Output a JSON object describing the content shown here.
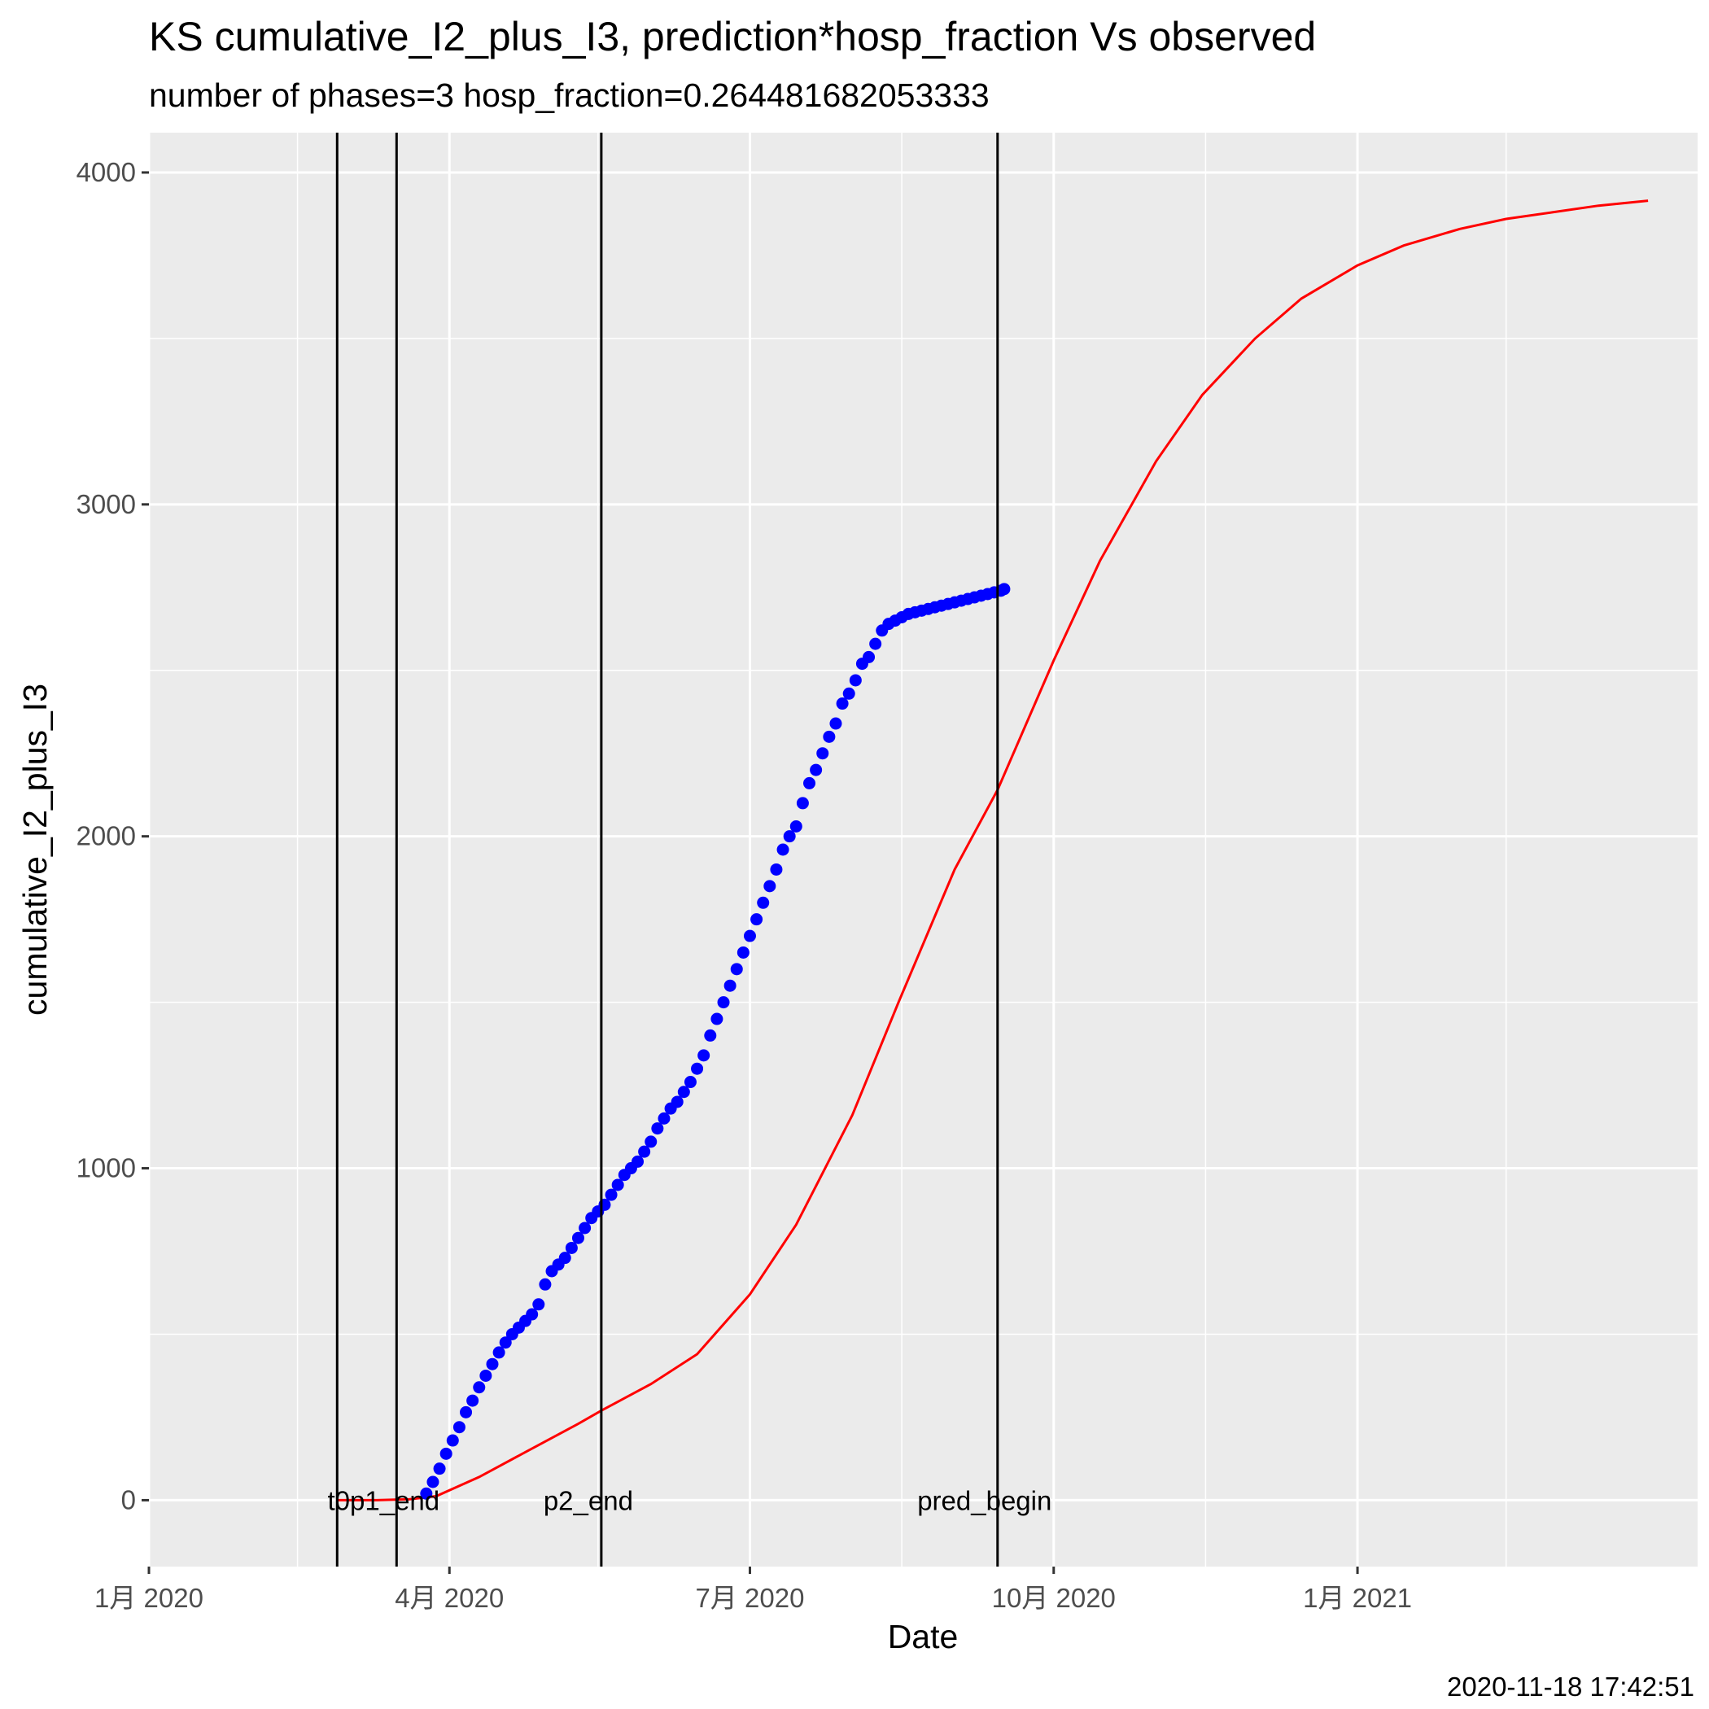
{
  "chart_data": {
    "type": "scatter",
    "title": "KS cumulative_I2_plus_I3,  prediction*hosp_fraction Vs observed",
    "subtitle": "number of phases=3   hosp_fraction=0.264481682053333",
    "xlabel": "Date",
    "ylabel": "cumulative_I2_plus_I3",
    "caption": "2020-11-18 17:42:51",
    "xlim": [
      "2020-01-01",
      "2021-04-14"
    ],
    "ylim": [
      -200,
      4120
    ],
    "x_ticks": [
      {
        "date": "2020-01-01",
        "label": "1月 2020"
      },
      {
        "date": "2020-04-01",
        "label": "4月 2020"
      },
      {
        "date": "2020-07-01",
        "label": "7月 2020"
      },
      {
        "date": "2020-10-01",
        "label": "10月 2020"
      },
      {
        "date": "2021-01-01",
        "label": "1月 2021"
      }
    ],
    "x_minor_ticks": [
      "2020-02-15",
      "2020-05-16",
      "2020-08-16",
      "2020-11-16",
      "2021-02-15"
    ],
    "y_ticks": [
      0,
      1000,
      2000,
      3000,
      4000
    ],
    "y_minor_ticks": [
      500,
      1500,
      2500,
      3500
    ],
    "grid": true,
    "vlines": [
      {
        "date": "2020-02-27",
        "label": ""
      },
      {
        "date": "2020-03-16",
        "label": "t0p1_end"
      },
      {
        "date": "2020-05-17",
        "label": "p2_end"
      },
      {
        "date": "2020-09-14",
        "label": "pred_begin"
      }
    ],
    "vline_label_y": 0,
    "series": [
      {
        "kind": "points",
        "color": "#0000ff",
        "x": [
          "2020-03-25",
          "2020-03-27",
          "2020-03-29",
          "2020-03-31",
          "2020-04-02",
          "2020-04-04",
          "2020-04-06",
          "2020-04-08",
          "2020-04-10",
          "2020-04-12",
          "2020-04-14",
          "2020-04-16",
          "2020-04-18",
          "2020-04-20",
          "2020-04-22",
          "2020-04-24",
          "2020-04-26",
          "2020-04-28",
          "2020-04-30",
          "2020-05-02",
          "2020-05-04",
          "2020-05-06",
          "2020-05-08",
          "2020-05-10",
          "2020-05-12",
          "2020-05-14",
          "2020-05-16",
          "2020-05-18",
          "2020-05-20",
          "2020-05-22",
          "2020-05-24",
          "2020-05-26",
          "2020-05-28",
          "2020-05-30",
          "2020-06-01",
          "2020-06-03",
          "2020-06-05",
          "2020-06-07",
          "2020-06-09",
          "2020-06-11",
          "2020-06-13",
          "2020-06-15",
          "2020-06-17",
          "2020-06-19",
          "2020-06-21",
          "2020-06-23",
          "2020-06-25",
          "2020-06-27",
          "2020-06-29",
          "2020-07-01",
          "2020-07-03",
          "2020-07-05",
          "2020-07-07",
          "2020-07-09",
          "2020-07-11",
          "2020-07-13",
          "2020-07-15",
          "2020-07-17",
          "2020-07-19",
          "2020-07-21",
          "2020-07-23",
          "2020-07-25",
          "2020-07-27",
          "2020-07-29",
          "2020-07-31",
          "2020-08-02",
          "2020-08-04",
          "2020-08-06",
          "2020-08-08",
          "2020-08-10",
          "2020-08-12",
          "2020-08-14",
          "2020-08-16",
          "2020-08-18",
          "2020-08-20",
          "2020-08-22",
          "2020-08-24",
          "2020-08-26",
          "2020-08-28",
          "2020-08-30",
          "2020-09-01",
          "2020-09-03",
          "2020-09-05",
          "2020-09-07",
          "2020-09-09",
          "2020-09-11",
          "2020-09-13",
          "2020-09-15",
          "2020-09-16"
        ],
        "y": [
          20,
          55,
          95,
          140,
          180,
          220,
          265,
          300,
          340,
          375,
          410,
          445,
          475,
          500,
          520,
          540,
          560,
          590,
          650,
          690,
          710,
          730,
          760,
          790,
          820,
          850,
          870,
          890,
          920,
          950,
          980,
          1000,
          1020,
          1050,
          1080,
          1120,
          1150,
          1180,
          1200,
          1230,
          1260,
          1300,
          1340,
          1400,
          1450,
          1500,
          1550,
          1600,
          1650,
          1700,
          1750,
          1800,
          1850,
          1900,
          1960,
          2000,
          2030,
          2100,
          2160,
          2200,
          2250,
          2300,
          2340,
          2400,
          2430,
          2470,
          2520,
          2540,
          2580,
          2620,
          2640,
          2650,
          2660,
          2670,
          2675,
          2680,
          2685,
          2690,
          2695,
          2700,
          2705,
          2710,
          2715,
          2720,
          2725,
          2730,
          2735,
          2740,
          2745
        ]
      },
      {
        "kind": "line",
        "color": "#ff0000",
        "x": [
          "2020-02-27",
          "2020-03-10",
          "2020-03-20",
          "2020-03-28",
          "2020-04-10",
          "2020-04-25",
          "2020-05-10",
          "2020-05-17",
          "2020-06-01",
          "2020-06-15",
          "2020-07-01",
          "2020-07-15",
          "2020-08-01",
          "2020-08-15",
          "2020-09-01",
          "2020-09-14",
          "2020-10-01",
          "2020-10-15",
          "2020-11-01",
          "2020-11-15",
          "2020-12-01",
          "2020-12-15",
          "2021-01-01",
          "2021-01-15",
          "2021-02-01",
          "2021-02-15",
          "2021-03-01",
          "2021-03-15",
          "2021-03-30"
        ],
        "y": [
          0,
          0,
          3,
          12,
          70,
          150,
          230,
          270,
          350,
          440,
          620,
          830,
          1160,
          1500,
          1900,
          2140,
          2530,
          2830,
          3130,
          3330,
          3500,
          3620,
          3720,
          3780,
          3830,
          3860,
          3880,
          3900,
          3915
        ]
      }
    ]
  }
}
